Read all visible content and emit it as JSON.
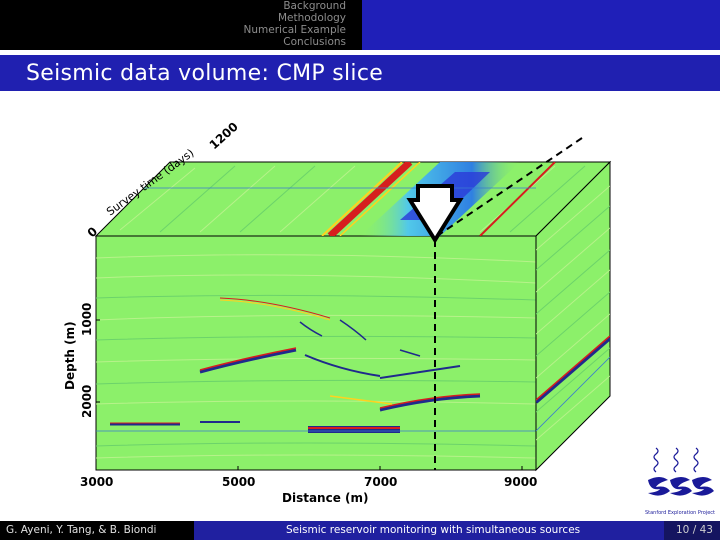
{
  "nav": {
    "sections": [
      "Background",
      "Methodology",
      "Numerical Example",
      "Conclusions"
    ]
  },
  "slide": {
    "title": "Seismic data volume: CMP slice"
  },
  "figure": {
    "depth_label": "Depth (m)",
    "distance_label": "Distance (m)",
    "time_label": "Survey time (days)",
    "depth_ticks": [
      "1000",
      "2000"
    ],
    "distance_ticks": [
      "3000",
      "5000",
      "7000",
      "9000"
    ],
    "time_ticks": [
      "0",
      "1200"
    ],
    "colors": {
      "background": "#8cf06a",
      "positive": "#d61e1e",
      "negative": "#2a3ad8",
      "highlight": "#ffd21e",
      "cyan": "#4ec6f0"
    }
  },
  "footer": {
    "authors": "G. Ayeni, Y. Tang, & B. Biondi",
    "talk_title": "Seismic reservoir monitoring with simultaneous sources",
    "page": "10 / 43"
  },
  "logo": {
    "caption": "Stanford Exploration Project"
  }
}
